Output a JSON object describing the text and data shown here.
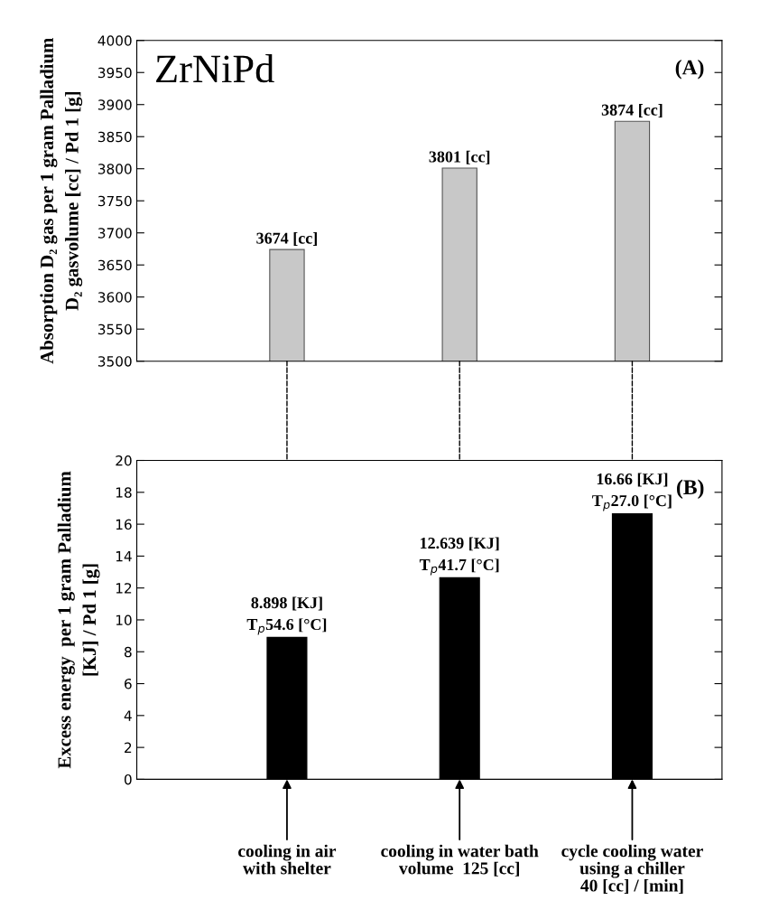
{
  "chart_data": [
    {
      "type": "bar",
      "ylabel": "Absorption D₂ gas per 1 gram Palladium\nD₂ gasvolume [cc] / Pd 1 [g]",
      "categories": [
        null,
        null,
        null
      ],
      "values": [
        3674,
        3801,
        3874
      ],
      "value_labels": [
        "3674 [cc]",
        "3801 [cc]",
        "3874 [cc]"
      ],
      "color": "#c8c8c8",
      "ylim": [
        3500,
        4000
      ],
      "yticks": [
        3500,
        3550,
        3600,
        3650,
        3700,
        3750,
        3800,
        3850,
        3900,
        3950,
        4000
      ],
      "tick_labels": "y",
      "grid": false,
      "legend": false,
      "annotations": [
        "ZrNiPd",
        "(A)"
      ]
    },
    {
      "type": "bar",
      "ylabel": "Excess energy  per 1 gram Palladium\n[KJ] / Pd 1 [g]",
      "categories": [
        "cooling in air\nwith shelter",
        "cooling in water bath\nvolume  125 [cc]",
        "cycle cooling water\nusing a chiller\n40 [cc] / [min]"
      ],
      "values": [
        8.898,
        12.639,
        16.66
      ],
      "value_labels": [
        "8.898 [KJ]\nT$_{p}$54.6 [°C]",
        "12.639 [KJ]\nT$_{p}$41.7 [°C]",
        "16.66 [KJ]\nT$_{p}$27.0 [°C]"
      ],
      "color": "#000000",
      "ylim": [
        0,
        20
      ],
      "yticks": [
        0,
        2,
        4,
        6,
        8,
        10,
        12,
        14,
        16,
        18,
        20
      ],
      "grid": false,
      "legend": false,
      "annotations": [
        "(B)"
      ]
    }
  ]
}
